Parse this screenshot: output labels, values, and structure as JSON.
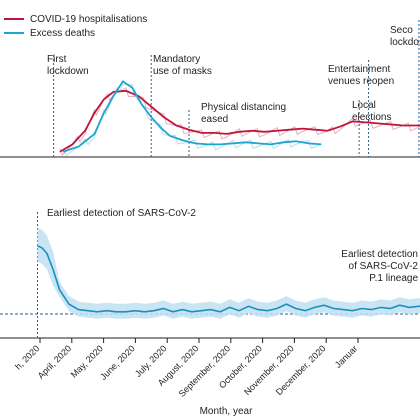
{
  "chart_data": [
    {
      "type": "line",
      "panel": "top",
      "legend_position": "top-left",
      "series": [
        {
          "name": "COVID-19 hospitalisations",
          "color": "#c0143c",
          "x": [
            1.9,
            2.3,
            2.7,
            3.0,
            3.3,
            3.6,
            4.0,
            4.4,
            4.8,
            5.2,
            5.6,
            6.0,
            6.4,
            6.8,
            7.2,
            7.6,
            8.0,
            8.4,
            8.8,
            9.2,
            9.6,
            10.0,
            10.4,
            10.8,
            11.2,
            11.6,
            12.0,
            12.4,
            12.8,
            13.2,
            13.6
          ],
          "y": [
            0.05,
            0.12,
            0.25,
            0.42,
            0.55,
            0.62,
            0.63,
            0.58,
            0.48,
            0.38,
            0.3,
            0.26,
            0.23,
            0.23,
            0.22,
            0.24,
            0.25,
            0.24,
            0.25,
            0.26,
            0.27,
            0.26,
            0.25,
            0.29,
            0.34,
            0.33,
            0.32,
            0.31,
            0.3,
            0.3,
            0.3
          ]
        },
        {
          "name": "Excess deaths",
          "color": "#1fa3cf",
          "x": [
            2.0,
            2.5,
            3.0,
            3.3,
            3.6,
            3.9,
            4.2,
            4.5,
            4.8,
            5.1,
            5.4,
            5.8,
            6.2,
            6.6,
            7.0,
            7.4,
            7.8,
            8.2,
            8.6,
            9.0,
            9.4,
            9.8,
            10.2
          ],
          "y": [
            0.05,
            0.1,
            0.22,
            0.42,
            0.58,
            0.72,
            0.66,
            0.5,
            0.38,
            0.28,
            0.2,
            0.16,
            0.13,
            0.12,
            0.12,
            0.13,
            0.14,
            0.13,
            0.12,
            0.14,
            0.15,
            0.13,
            0.12
          ]
        }
      ],
      "annotations": [
        {
          "x": 1.7,
          "lines": [
            "First",
            "lockdown"
          ]
        },
        {
          "x": 4.8,
          "lines": [
            "Mandatory",
            "use of masks"
          ]
        },
        {
          "x": 6.0,
          "lines": [
            "Physical distancing",
            "eased"
          ]
        },
        {
          "x": 11.7,
          "lines": [
            "Entertainment",
            "venues reopen"
          ]
        },
        {
          "x": 11.4,
          "lines": [
            "Local",
            "elections"
          ]
        },
        {
          "x": 13.3,
          "lines": [
            "Seco",
            "lockdo"
          ]
        }
      ]
    },
    {
      "type": "line",
      "panel": "bottom",
      "series": [
        {
          "color": "#1b8fc2",
          "x": [
            1.0,
            1.15,
            1.3,
            1.5,
            1.7,
            2.0,
            2.3,
            2.6,
            2.9,
            3.2,
            3.5,
            3.8,
            4.1,
            4.4,
            4.7,
            5.0,
            5.3,
            5.6,
            5.9,
            6.2,
            6.5,
            6.8,
            7.1,
            7.4,
            7.7,
            8.0,
            8.3,
            8.6,
            8.9,
            9.2,
            9.5,
            9.8,
            10.1,
            10.4,
            10.7,
            11.0,
            11.3,
            11.6,
            11.9,
            12.2,
            12.5,
            12.8,
            13.1,
            13.4,
            13.6
          ],
          "y": [
            0.62,
            0.6,
            0.55,
            0.4,
            0.22,
            0.09,
            0.04,
            0.03,
            0.02,
            0.03,
            0.02,
            0.02,
            0.03,
            0.02,
            0.03,
            0.05,
            0.02,
            0.04,
            0.02,
            0.03,
            0.04,
            0.02,
            0.06,
            0.03,
            0.07,
            0.04,
            0.03,
            0.05,
            0.09,
            0.05,
            0.03,
            0.06,
            0.08,
            0.05,
            0.04,
            0.03,
            0.05,
            0.04,
            0.06,
            0.05,
            0.08,
            0.06,
            0.07,
            0.08,
            0.08
          ]
        }
      ],
      "baseline": 0,
      "annotations": [
        {
          "x": 1.0,
          "lines": [
            "Earliest detection of SARS-CoV-2"
          ]
        },
        {
          "x": 13.6,
          "lines": [
            "Earliest detection",
            "of SARS-CoV-2",
            "P.1 lineage"
          ]
        }
      ]
    }
  ],
  "x_axis": {
    "label": "Month, year",
    "ticks": [
      {
        "x": 0,
        "label": "h, 2020"
      },
      {
        "x": 1,
        "label": "April, 2020"
      },
      {
        "x": 2,
        "label": "May, 2020"
      },
      {
        "x": 3,
        "label": "June, 2020"
      },
      {
        "x": 4,
        "label": "July, 2020"
      },
      {
        "x": 5,
        "label": "August, 2020"
      },
      {
        "x": 6,
        "label": "September, 2020"
      },
      {
        "x": 7,
        "label": "October, 2020"
      },
      {
        "x": 8,
        "label": "November, 2020"
      },
      {
        "x": 9,
        "label": "December, 2020"
      },
      {
        "x": 10,
        "label": "Januar"
      }
    ]
  }
}
